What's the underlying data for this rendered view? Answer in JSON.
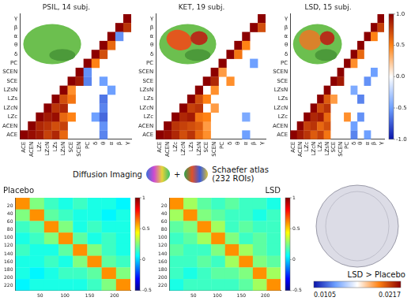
{
  "chart_data": [
    {
      "type": "heatmap",
      "title": "PSIL, 14 subj.",
      "categories": [
        "ACE",
        "ACEN",
        "LZc",
        "LZcN",
        "LZs",
        "LZsN",
        "SCE",
        "SCEN",
        "PC",
        "δ",
        "θ",
        "α",
        "β",
        "γ"
      ],
      "cells": [
        [
          0,
          0,
          1
        ],
        [
          1,
          1,
          1
        ],
        [
          2,
          2,
          1
        ],
        [
          3,
          3,
          1
        ],
        [
          4,
          4,
          1
        ],
        [
          5,
          5,
          1
        ],
        [
          6,
          6,
          1
        ],
        [
          7,
          7,
          1
        ],
        [
          8,
          8,
          1
        ],
        [
          9,
          9,
          1
        ],
        [
          10,
          10,
          1
        ],
        [
          11,
          11,
          1
        ],
        [
          12,
          12,
          1
        ],
        [
          13,
          13,
          1
        ],
        [
          1,
          0,
          0.95
        ],
        [
          2,
          0,
          0.9
        ],
        [
          3,
          0,
          0.75
        ],
        [
          4,
          0,
          0.85
        ],
        [
          5,
          0,
          0.6
        ],
        [
          10,
          0,
          -0.6
        ],
        [
          2,
          1,
          0.85
        ],
        [
          3,
          1,
          0.8
        ],
        [
          4,
          1,
          0.7
        ],
        [
          5,
          1,
          0.75
        ],
        [
          10,
          1,
          -0.55
        ],
        [
          3,
          2,
          0.9
        ],
        [
          4,
          2,
          0.95
        ],
        [
          5,
          2,
          0.6
        ],
        [
          6,
          2,
          0.5
        ],
        [
          9,
          2,
          -0.5
        ],
        [
          10,
          2,
          -0.7
        ],
        [
          4,
          3,
          0.8
        ],
        [
          5,
          3,
          0.85
        ],
        [
          10,
          3,
          -0.6
        ],
        [
          5,
          4,
          0.7
        ],
        [
          6,
          4,
          0.55
        ],
        [
          10,
          4,
          -0.65
        ],
        [
          6,
          5,
          0.45
        ],
        [
          11,
          5,
          -0.5
        ],
        [
          7,
          6,
          0.9
        ],
        [
          8,
          6,
          -0.6
        ],
        [
          10,
          6,
          -0.5
        ],
        [
          8,
          7,
          -0.55
        ],
        [
          9,
          8,
          0.5
        ],
        [
          10,
          9,
          0.7
        ],
        [
          11,
          10,
          0.6
        ],
        [
          12,
          11,
          -0.55
        ],
        [
          13,
          12,
          0.8
        ]
      ]
    },
    {
      "type": "heatmap",
      "title": "KET, 19 subj.",
      "categories": [
        "ACE",
        "ACEN",
        "LZc",
        "LZcN",
        "LZs",
        "LZsN",
        "SCE",
        "SCEN",
        "PC",
        "δ",
        "θ",
        "α",
        "β",
        "γ"
      ],
      "cells": [
        [
          0,
          0,
          1
        ],
        [
          1,
          1,
          1
        ],
        [
          2,
          2,
          1
        ],
        [
          3,
          3,
          1
        ],
        [
          4,
          4,
          1
        ],
        [
          5,
          5,
          1
        ],
        [
          6,
          6,
          1
        ],
        [
          7,
          7,
          1
        ],
        [
          8,
          8,
          1
        ],
        [
          9,
          9,
          1
        ],
        [
          10,
          10,
          1
        ],
        [
          11,
          11,
          1
        ],
        [
          12,
          12,
          1
        ],
        [
          13,
          13,
          1
        ],
        [
          1,
          0,
          0.95
        ],
        [
          2,
          0,
          0.85
        ],
        [
          3,
          0,
          0.7
        ],
        [
          4,
          0,
          0.8
        ],
        [
          5,
          0,
          0.6
        ],
        [
          6,
          0,
          0.45
        ],
        [
          11,
          0,
          -0.5
        ],
        [
          2,
          1,
          0.8
        ],
        [
          3,
          1,
          0.75
        ],
        [
          4,
          1,
          0.7
        ],
        [
          5,
          1,
          0.65
        ],
        [
          6,
          1,
          0.4
        ],
        [
          3,
          2,
          0.85
        ],
        [
          4,
          2,
          0.9
        ],
        [
          5,
          2,
          0.55
        ],
        [
          6,
          2,
          0.5
        ],
        [
          11,
          2,
          -0.45
        ],
        [
          4,
          3,
          0.75
        ],
        [
          5,
          3,
          0.8
        ],
        [
          7,
          3,
          0.4
        ],
        [
          5,
          4,
          0.7
        ],
        [
          6,
          4,
          0.5
        ],
        [
          7,
          5,
          0.45
        ],
        [
          7,
          6,
          0.85
        ],
        [
          9,
          6,
          0.45
        ],
        [
          8,
          7,
          0.4
        ],
        [
          12,
          8,
          -0.5
        ],
        [
          10,
          9,
          0.55
        ],
        [
          11,
          10,
          0.5
        ],
        [
          13,
          12,
          0.7
        ]
      ]
    },
    {
      "type": "heatmap",
      "title": "LSD, 15 subj.",
      "categories": [
        "ACE",
        "ACEN",
        "LZc",
        "LZcN",
        "LZs",
        "LZsN",
        "SCE",
        "SCEN",
        "PC",
        "δ",
        "θ",
        "α",
        "β",
        "γ"
      ],
      "cells": [
        [
          0,
          0,
          1
        ],
        [
          1,
          1,
          1
        ],
        [
          2,
          2,
          1
        ],
        [
          3,
          3,
          1
        ],
        [
          4,
          4,
          1
        ],
        [
          5,
          5,
          1
        ],
        [
          6,
          6,
          1
        ],
        [
          7,
          7,
          1
        ],
        [
          8,
          8,
          1
        ],
        [
          9,
          9,
          1
        ],
        [
          10,
          10,
          1
        ],
        [
          11,
          11,
          1
        ],
        [
          12,
          12,
          1
        ],
        [
          13,
          13,
          1
        ],
        [
          1,
          0,
          0.9
        ],
        [
          2,
          0,
          0.8
        ],
        [
          3,
          0,
          0.65
        ],
        [
          4,
          0,
          0.75
        ],
        [
          5,
          0,
          0.55
        ],
        [
          9,
          0,
          -0.6
        ],
        [
          11,
          0,
          -0.5
        ],
        [
          2,
          1,
          0.75
        ],
        [
          3,
          1,
          0.8
        ],
        [
          4,
          1,
          0.6
        ],
        [
          5,
          1,
          0.7
        ],
        [
          9,
          1,
          -0.5
        ],
        [
          3,
          2,
          0.85
        ],
        [
          4,
          2,
          0.9
        ],
        [
          5,
          2,
          0.6
        ],
        [
          8,
          2,
          0.45
        ],
        [
          10,
          2,
          -0.55
        ],
        [
          4,
          3,
          0.7
        ],
        [
          5,
          3,
          0.8
        ],
        [
          5,
          4,
          0.65
        ],
        [
          6,
          4,
          0.4
        ],
        [
          10,
          4,
          -0.6
        ],
        [
          9,
          5,
          -0.45
        ],
        [
          7,
          6,
          0.9
        ],
        [
          11,
          6,
          -0.55
        ],
        [
          12,
          7,
          -0.5
        ],
        [
          9,
          8,
          0.45
        ],
        [
          10,
          9,
          0.6
        ],
        [
          12,
          11,
          0.5
        ],
        [
          13,
          12,
          0.75
        ]
      ],
      "colorbar": {
        "range": [
          -1,
          1
        ],
        "ticks": [
          {
            "value": -1,
            "label": "-1.0"
          },
          {
            "value": -0.5,
            "label": "-0.5"
          },
          {
            "value": 0,
            "label": "0.0"
          },
          {
            "value": 0.5,
            "label": "0.5"
          },
          {
            "value": 1,
            "label": "1.0"
          }
        ]
      }
    },
    {
      "type": "heatmap",
      "title": "Placebo",
      "x": [
        14.5,
        43.5,
        72.5,
        101.5,
        130.5,
        159.5,
        188.5,
        217.5
      ],
      "y": [
        14.5,
        43.5,
        72.5,
        101.5,
        130.5,
        159.5,
        188.5,
        217.5
      ],
      "z": [
        [
          0.6,
          0.25,
          0.15,
          0.1,
          0.15,
          0.1,
          0.1,
          0.05
        ],
        [
          0.25,
          0.6,
          0.2,
          0.15,
          0.1,
          0.1,
          0.05,
          0.1
        ],
        [
          0.15,
          0.2,
          0.6,
          0.25,
          0.1,
          0.15,
          0.1,
          0.1
        ],
        [
          0.1,
          0.15,
          0.25,
          0.6,
          0.2,
          0.1,
          0.15,
          0.1
        ],
        [
          0.15,
          0.1,
          0.1,
          0.2,
          0.6,
          0.25,
          0.15,
          0.1
        ],
        [
          0.1,
          0.1,
          0.15,
          0.1,
          0.25,
          0.6,
          0.2,
          0.15
        ],
        [
          0.1,
          0.05,
          0.1,
          0.15,
          0.15,
          0.2,
          0.6,
          0.25
        ],
        [
          0.05,
          0.1,
          0.1,
          0.1,
          0.1,
          0.15,
          0.25,
          0.6
        ]
      ],
      "xlim": [
        0,
        232
      ],
      "ylim": [
        0,
        232
      ],
      "xticks": [
        50,
        100,
        150,
        200
      ],
      "yticks": [
        20,
        40,
        60,
        80,
        100,
        120,
        140,
        160,
        180,
        200,
        220
      ],
      "colorbar": {
        "range": [
          -0.5,
          1
        ],
        "ticks": [
          -0.5,
          0,
          0.5,
          1
        ]
      }
    },
    {
      "type": "heatmap",
      "title": "LSD",
      "x": [
        14.5,
        43.5,
        72.5,
        101.5,
        130.5,
        159.5,
        188.5,
        217.5
      ],
      "y": [
        14.5,
        43.5,
        72.5,
        101.5,
        130.5,
        159.5,
        188.5,
        217.5
      ],
      "z": [
        [
          0.6,
          0.3,
          0.2,
          0.15,
          0.2,
          0.15,
          0.15,
          0.1
        ],
        [
          0.3,
          0.6,
          0.25,
          0.2,
          0.15,
          0.15,
          0.1,
          0.15
        ],
        [
          0.2,
          0.25,
          0.6,
          0.3,
          0.15,
          0.2,
          0.15,
          0.15
        ],
        [
          0.15,
          0.2,
          0.3,
          0.6,
          0.25,
          0.15,
          0.2,
          0.15
        ],
        [
          0.2,
          0.15,
          0.15,
          0.25,
          0.6,
          0.3,
          0.2,
          0.15
        ],
        [
          0.15,
          0.15,
          0.2,
          0.15,
          0.3,
          0.6,
          0.25,
          0.2
        ],
        [
          0.15,
          0.1,
          0.15,
          0.2,
          0.2,
          0.25,
          0.6,
          0.3
        ],
        [
          0.1,
          0.15,
          0.15,
          0.15,
          0.15,
          0.2,
          0.3,
          0.6
        ]
      ],
      "xlim": [
        0,
        232
      ],
      "ylim": [
        0,
        232
      ],
      "xticks": [
        50,
        100,
        150,
        200
      ],
      "yticks": [
        20,
        40,
        60,
        80,
        100,
        120,
        140,
        160,
        180,
        200,
        220
      ],
      "colorbar": {
        "range": [
          -0.5,
          1
        ],
        "ticks": [
          -0.5,
          0,
          0.5,
          1
        ]
      }
    },
    {
      "type": "network",
      "title": "LSD > Placebo",
      "colorbar": {
        "range": [
          0.0105,
          0.0217
        ],
        "ticks": [
          0.0105,
          0.0217
        ]
      }
    }
  ],
  "annotations": [
    "Diffusion Imaging",
    "+",
    "Schaefer atlas (232 ROIs)"
  ]
}
